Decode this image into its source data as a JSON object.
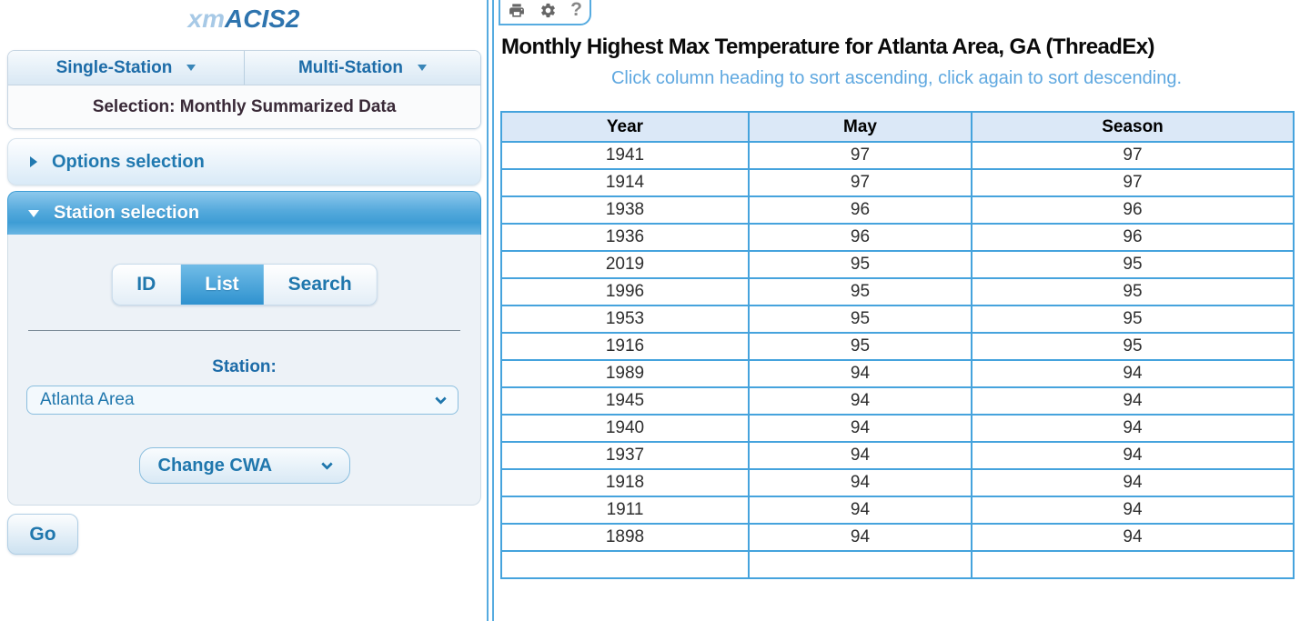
{
  "logo": {
    "prefix": "xm",
    "suffix": "ACIS2"
  },
  "sidebar": {
    "nav": {
      "single_station": "Single-Station",
      "multi_station": "Multi-Station"
    },
    "selection_text": "Selection: Monthly Summarized Data",
    "options_header": "Options selection",
    "station_header": "Station selection",
    "tabs": [
      {
        "label": "ID",
        "selected": false
      },
      {
        "label": "List",
        "selected": true
      },
      {
        "label": "Search",
        "selected": false
      }
    ],
    "station_label": "Station:",
    "station_value": "Atlanta Area",
    "cwa_button": "Change CWA",
    "go_button": "Go"
  },
  "toolbar": {
    "help_glyph": "?"
  },
  "main": {
    "title": "Monthly Highest Max Temperature for Atlanta Area, GA (ThreadEx)",
    "subtitle": "Click column heading to sort ascending, click again to sort descending."
  },
  "table": {
    "columns": [
      "Year",
      "May",
      "Season"
    ],
    "rows": [
      [
        "1941",
        "97",
        "97"
      ],
      [
        "1914",
        "97",
        "97"
      ],
      [
        "1938",
        "96",
        "96"
      ],
      [
        "1936",
        "96",
        "96"
      ],
      [
        "2019",
        "95",
        "95"
      ],
      [
        "1996",
        "95",
        "95"
      ],
      [
        "1953",
        "95",
        "95"
      ],
      [
        "1916",
        "95",
        "95"
      ],
      [
        "1989",
        "94",
        "94"
      ],
      [
        "1945",
        "94",
        "94"
      ],
      [
        "1940",
        "94",
        "94"
      ],
      [
        "1937",
        "94",
        "94"
      ],
      [
        "1918",
        "94",
        "94"
      ],
      [
        "1911",
        "94",
        "94"
      ],
      [
        "1898",
        "94",
        "94"
      ]
    ]
  },
  "colors": {
    "accent_blue": "#45a3dd",
    "link_blue": "#2077ad",
    "header_row_bg": "#dbe8f7",
    "subtitle_blue": "#5fa8e0"
  }
}
